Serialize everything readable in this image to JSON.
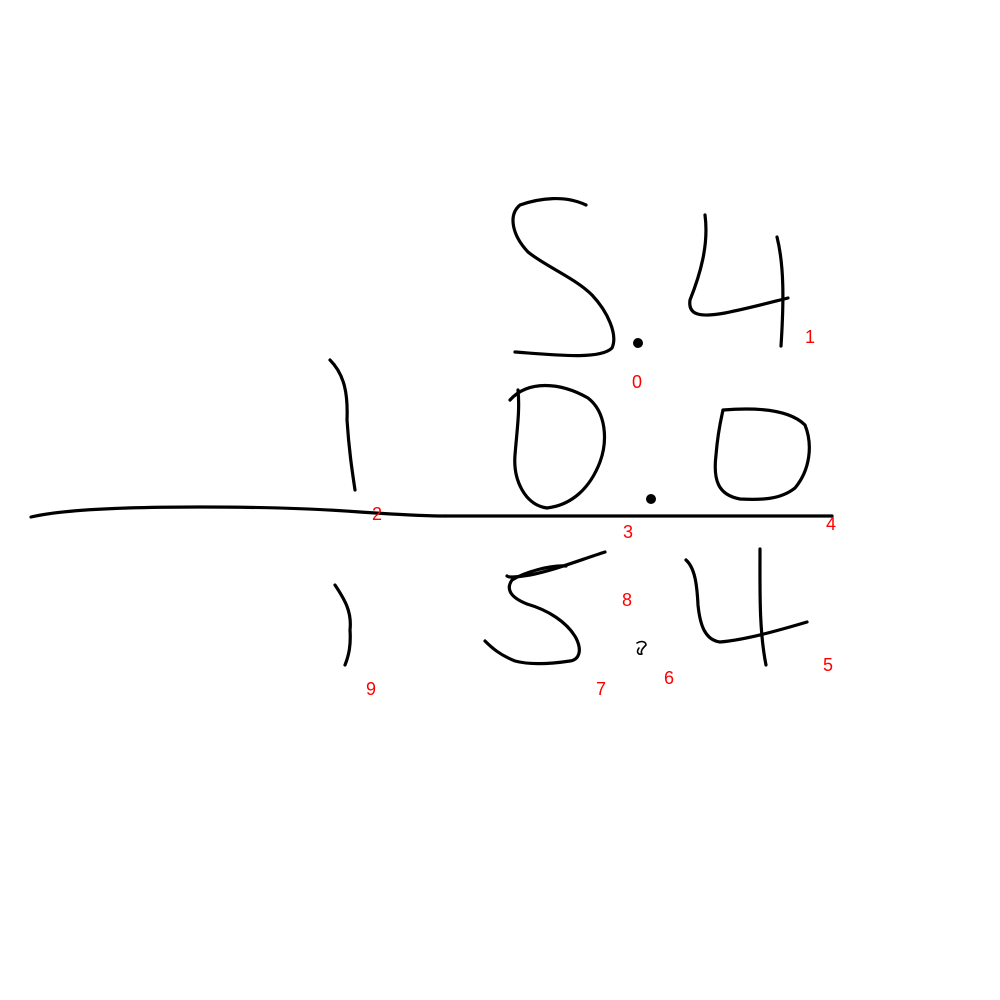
{
  "canvas": {
    "background": "#ffffff",
    "ink_color": "#000000",
    "label_color": "#ff0000"
  },
  "handwriting": {
    "row_top": "5.4",
    "row_middle": "10.0",
    "row_bottom": "15.4",
    "stray_mark": "∂"
  },
  "stroke_labels": [
    "0",
    "1",
    "2",
    "3",
    "4",
    "5",
    "6",
    "7",
    "8",
    "9"
  ]
}
